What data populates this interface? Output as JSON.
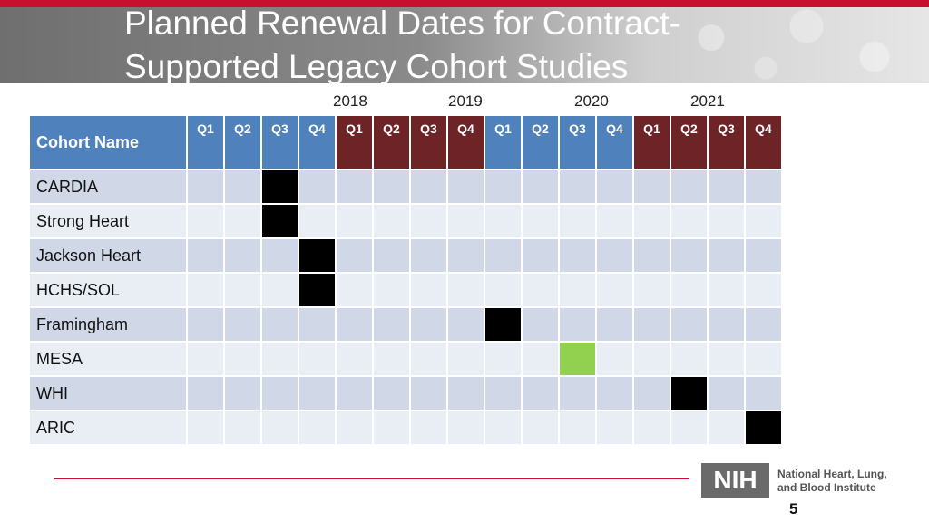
{
  "slide": {
    "title": "Planned Renewal Dates for Contract-Supported Legacy Cohort Studies",
    "page_number": "5"
  },
  "years": [
    "2018",
    "2019",
    "2020",
    "2021"
  ],
  "table": {
    "name_header": "Cohort Name",
    "quarters": [
      "Q1",
      "Q2",
      "Q3",
      "Q4",
      "Q1",
      "Q2",
      "Q3",
      "Q4",
      "Q1",
      "Q2",
      "Q3",
      "Q4",
      "Q1",
      "Q2",
      "Q3",
      "Q4"
    ],
    "rows": [
      {
        "name": "CARDIA",
        "marked_quarter": 3,
        "mark_color": "#000000"
      },
      {
        "name": "Strong Heart",
        "marked_quarter": 3,
        "mark_color": "#000000"
      },
      {
        "name": "Jackson Heart",
        "marked_quarter": 4,
        "mark_color": "#000000"
      },
      {
        "name": "HCHS/SOL",
        "marked_quarter": 4,
        "mark_color": "#000000"
      },
      {
        "name": " Framingham",
        "marked_quarter": 9,
        "mark_color": "#000000"
      },
      {
        "name": "MESA",
        "marked_quarter": 11,
        "mark_color": "#92d050"
      },
      {
        "name": "WHI",
        "marked_quarter": 14,
        "mark_color": "#000000"
      },
      {
        "name": "ARIC",
        "marked_quarter": 16,
        "mark_color": "#000000"
      }
    ]
  },
  "logo": {
    "short": "NIH",
    "line1": "National Heart, Lung,",
    "line2": "and Blood Institute"
  },
  "colors": {
    "header_blue": "#4f81bd",
    "header_maroon": "#6e2427",
    "accent_red": "#c8102e",
    "renewal_black": "#000000",
    "renewal_green": "#92d050"
  }
}
